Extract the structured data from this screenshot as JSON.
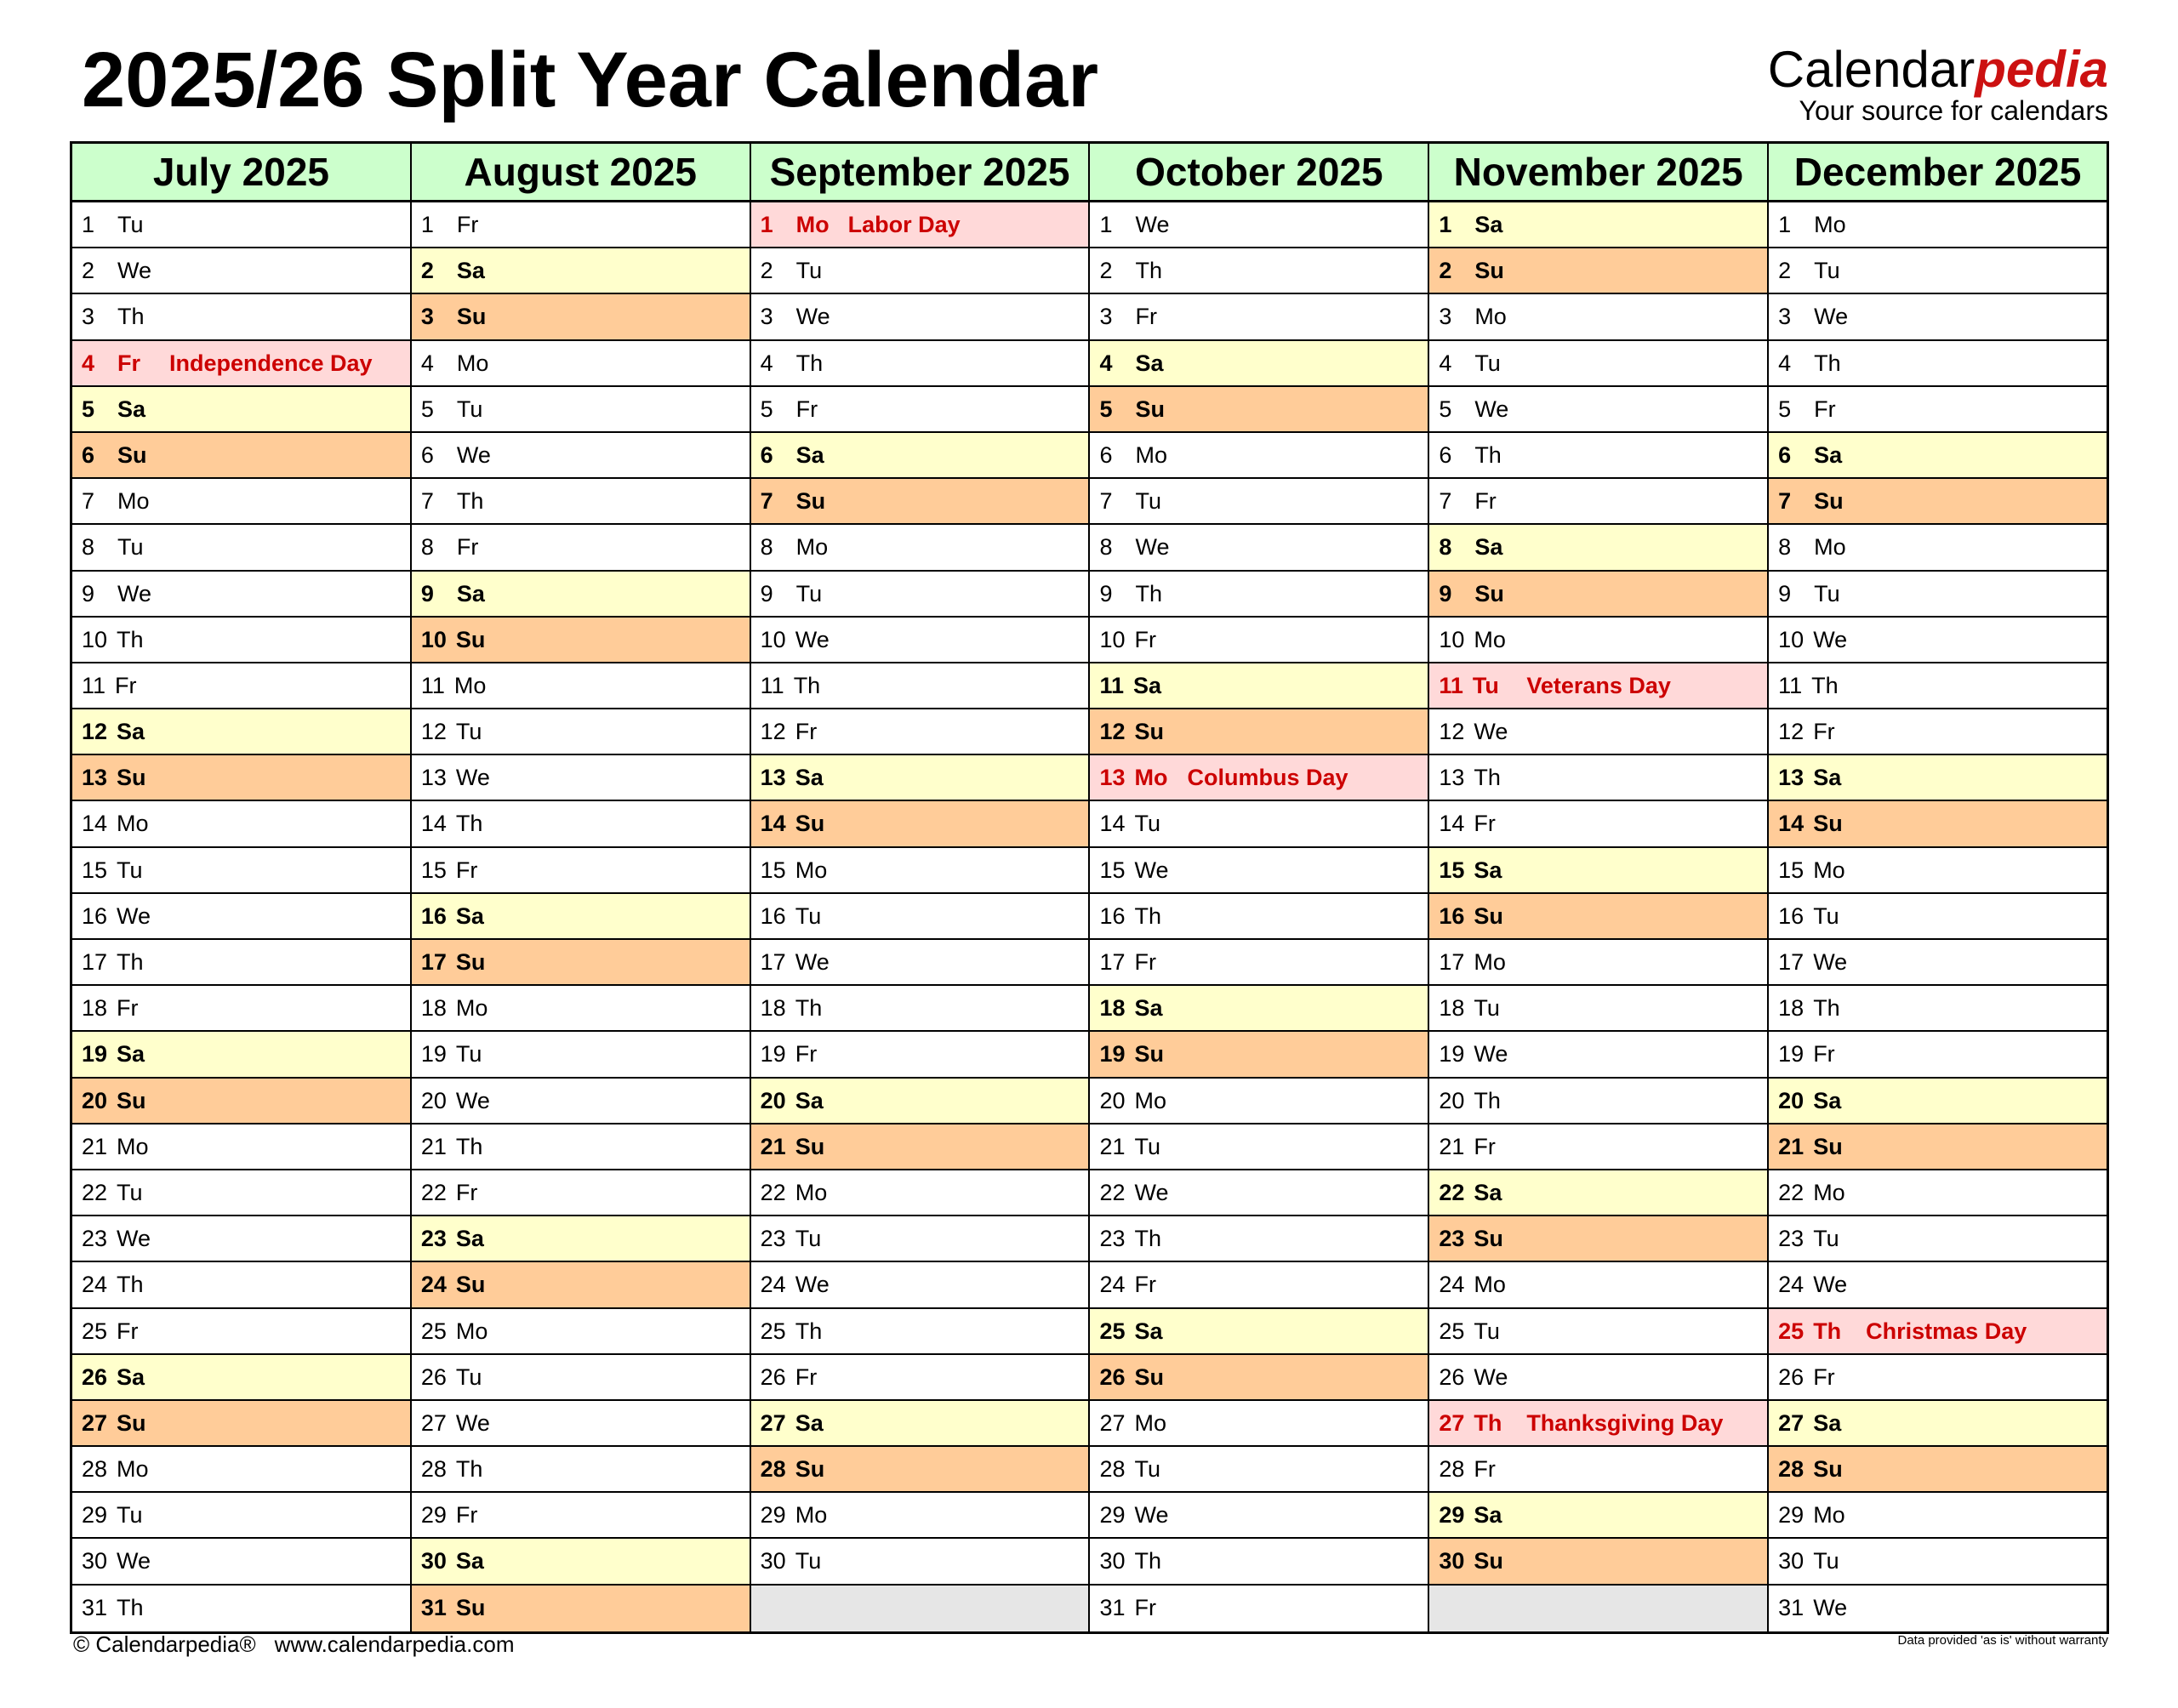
{
  "title": "2025/26 Split Year Calendar",
  "logo": {
    "brand_main": "Calendar",
    "brand_accent": "pedia",
    "tagline": "Your source for calendars"
  },
  "colors": {
    "header": "#ccffcc",
    "saturday": "#ffffcc",
    "sunday": "#ffcc99",
    "holiday": "#ffd9d9",
    "holiday_text": "#cc0000",
    "empty": "#e6e6e6"
  },
  "months": [
    {
      "name": "July 2025",
      "days": [
        [
          1,
          "Tu"
        ],
        [
          2,
          "We"
        ],
        [
          3,
          "Th"
        ],
        [
          4,
          "Fr",
          "Independence Day"
        ],
        [
          5,
          "Sa"
        ],
        [
          6,
          "Su"
        ],
        [
          7,
          "Mo"
        ],
        [
          8,
          "Tu"
        ],
        [
          9,
          "We"
        ],
        [
          10,
          "Th"
        ],
        [
          11,
          "Fr"
        ],
        [
          12,
          "Sa"
        ],
        [
          13,
          "Su"
        ],
        [
          14,
          "Mo"
        ],
        [
          15,
          "Tu"
        ],
        [
          16,
          "We"
        ],
        [
          17,
          "Th"
        ],
        [
          18,
          "Fr"
        ],
        [
          19,
          "Sa"
        ],
        [
          20,
          "Su"
        ],
        [
          21,
          "Mo"
        ],
        [
          22,
          "Tu"
        ],
        [
          23,
          "We"
        ],
        [
          24,
          "Th"
        ],
        [
          25,
          "Fr"
        ],
        [
          26,
          "Sa"
        ],
        [
          27,
          "Su"
        ],
        [
          28,
          "Mo"
        ],
        [
          29,
          "Tu"
        ],
        [
          30,
          "We"
        ],
        [
          31,
          "Th"
        ]
      ]
    },
    {
      "name": "August 2025",
      "days": [
        [
          1,
          "Fr"
        ],
        [
          2,
          "Sa"
        ],
        [
          3,
          "Su"
        ],
        [
          4,
          "Mo"
        ],
        [
          5,
          "Tu"
        ],
        [
          6,
          "We"
        ],
        [
          7,
          "Th"
        ],
        [
          8,
          "Fr"
        ],
        [
          9,
          "Sa"
        ],
        [
          10,
          "Su"
        ],
        [
          11,
          "Mo"
        ],
        [
          12,
          "Tu"
        ],
        [
          13,
          "We"
        ],
        [
          14,
          "Th"
        ],
        [
          15,
          "Fr"
        ],
        [
          16,
          "Sa"
        ],
        [
          17,
          "Su"
        ],
        [
          18,
          "Mo"
        ],
        [
          19,
          "Tu"
        ],
        [
          20,
          "We"
        ],
        [
          21,
          "Th"
        ],
        [
          22,
          "Fr"
        ],
        [
          23,
          "Sa"
        ],
        [
          24,
          "Su"
        ],
        [
          25,
          "Mo"
        ],
        [
          26,
          "Tu"
        ],
        [
          27,
          "We"
        ],
        [
          28,
          "Th"
        ],
        [
          29,
          "Fr"
        ],
        [
          30,
          "Sa"
        ],
        [
          31,
          "Su"
        ]
      ]
    },
    {
      "name": "September 2025",
      "days": [
        [
          1,
          "Mo",
          "Labor Day"
        ],
        [
          2,
          "Tu"
        ],
        [
          3,
          "We"
        ],
        [
          4,
          "Th"
        ],
        [
          5,
          "Fr"
        ],
        [
          6,
          "Sa"
        ],
        [
          7,
          "Su"
        ],
        [
          8,
          "Mo"
        ],
        [
          9,
          "Tu"
        ],
        [
          10,
          "We"
        ],
        [
          11,
          "Th"
        ],
        [
          12,
          "Fr"
        ],
        [
          13,
          "Sa"
        ],
        [
          14,
          "Su"
        ],
        [
          15,
          "Mo"
        ],
        [
          16,
          "Tu"
        ],
        [
          17,
          "We"
        ],
        [
          18,
          "Th"
        ],
        [
          19,
          "Fr"
        ],
        [
          20,
          "Sa"
        ],
        [
          21,
          "Su"
        ],
        [
          22,
          "Mo"
        ],
        [
          23,
          "Tu"
        ],
        [
          24,
          "We"
        ],
        [
          25,
          "Th"
        ],
        [
          26,
          "Fr"
        ],
        [
          27,
          "Sa"
        ],
        [
          28,
          "Su"
        ],
        [
          29,
          "Mo"
        ],
        [
          30,
          "Tu"
        ]
      ]
    },
    {
      "name": "October 2025",
      "days": [
        [
          1,
          "We"
        ],
        [
          2,
          "Th"
        ],
        [
          3,
          "Fr"
        ],
        [
          4,
          "Sa"
        ],
        [
          5,
          "Su"
        ],
        [
          6,
          "Mo"
        ],
        [
          7,
          "Tu"
        ],
        [
          8,
          "We"
        ],
        [
          9,
          "Th"
        ],
        [
          10,
          "Fr"
        ],
        [
          11,
          "Sa"
        ],
        [
          12,
          "Su"
        ],
        [
          13,
          "Mo",
          "Columbus Day"
        ],
        [
          14,
          "Tu"
        ],
        [
          15,
          "We"
        ],
        [
          16,
          "Th"
        ],
        [
          17,
          "Fr"
        ],
        [
          18,
          "Sa"
        ],
        [
          19,
          "Su"
        ],
        [
          20,
          "Mo"
        ],
        [
          21,
          "Tu"
        ],
        [
          22,
          "We"
        ],
        [
          23,
          "Th"
        ],
        [
          24,
          "Fr"
        ],
        [
          25,
          "Sa"
        ],
        [
          26,
          "Su"
        ],
        [
          27,
          "Mo"
        ],
        [
          28,
          "Tu"
        ],
        [
          29,
          "We"
        ],
        [
          30,
          "Th"
        ],
        [
          31,
          "Fr"
        ]
      ]
    },
    {
      "name": "November 2025",
      "days": [
        [
          1,
          "Sa"
        ],
        [
          2,
          "Su"
        ],
        [
          3,
          "Mo"
        ],
        [
          4,
          "Tu"
        ],
        [
          5,
          "We"
        ],
        [
          6,
          "Th"
        ],
        [
          7,
          "Fr"
        ],
        [
          8,
          "Sa"
        ],
        [
          9,
          "Su"
        ],
        [
          10,
          "Mo"
        ],
        [
          11,
          "Tu",
          "Veterans Day"
        ],
        [
          12,
          "We"
        ],
        [
          13,
          "Th"
        ],
        [
          14,
          "Fr"
        ],
        [
          15,
          "Sa"
        ],
        [
          16,
          "Su"
        ],
        [
          17,
          "Mo"
        ],
        [
          18,
          "Tu"
        ],
        [
          19,
          "We"
        ],
        [
          20,
          "Th"
        ],
        [
          21,
          "Fr"
        ],
        [
          22,
          "Sa"
        ],
        [
          23,
          "Su"
        ],
        [
          24,
          "Mo"
        ],
        [
          25,
          "Tu"
        ],
        [
          26,
          "We"
        ],
        [
          27,
          "Th",
          "Thanksgiving Day"
        ],
        [
          28,
          "Fr"
        ],
        [
          29,
          "Sa"
        ],
        [
          30,
          "Su"
        ]
      ]
    },
    {
      "name": "December 2025",
      "days": [
        [
          1,
          "Mo"
        ],
        [
          2,
          "Tu"
        ],
        [
          3,
          "We"
        ],
        [
          4,
          "Th"
        ],
        [
          5,
          "Fr"
        ],
        [
          6,
          "Sa"
        ],
        [
          7,
          "Su"
        ],
        [
          8,
          "Mo"
        ],
        [
          9,
          "Tu"
        ],
        [
          10,
          "We"
        ],
        [
          11,
          "Th"
        ],
        [
          12,
          "Fr"
        ],
        [
          13,
          "Sa"
        ],
        [
          14,
          "Su"
        ],
        [
          15,
          "Mo"
        ],
        [
          16,
          "Tu"
        ],
        [
          17,
          "We"
        ],
        [
          18,
          "Th"
        ],
        [
          19,
          "Fr"
        ],
        [
          20,
          "Sa"
        ],
        [
          21,
          "Su"
        ],
        [
          22,
          "Mo"
        ],
        [
          23,
          "Tu"
        ],
        [
          24,
          "We"
        ],
        [
          25,
          "Th",
          "Christmas Day"
        ],
        [
          26,
          "Fr"
        ],
        [
          27,
          "Sa"
        ],
        [
          28,
          "Su"
        ],
        [
          29,
          "Mo"
        ],
        [
          30,
          "Tu"
        ],
        [
          31,
          "We"
        ]
      ]
    }
  ],
  "footer": {
    "copyright": "© Calendarpedia®",
    "url": "www.calendarpedia.com",
    "disclaimer": "Data provided 'as is' without warranty"
  }
}
